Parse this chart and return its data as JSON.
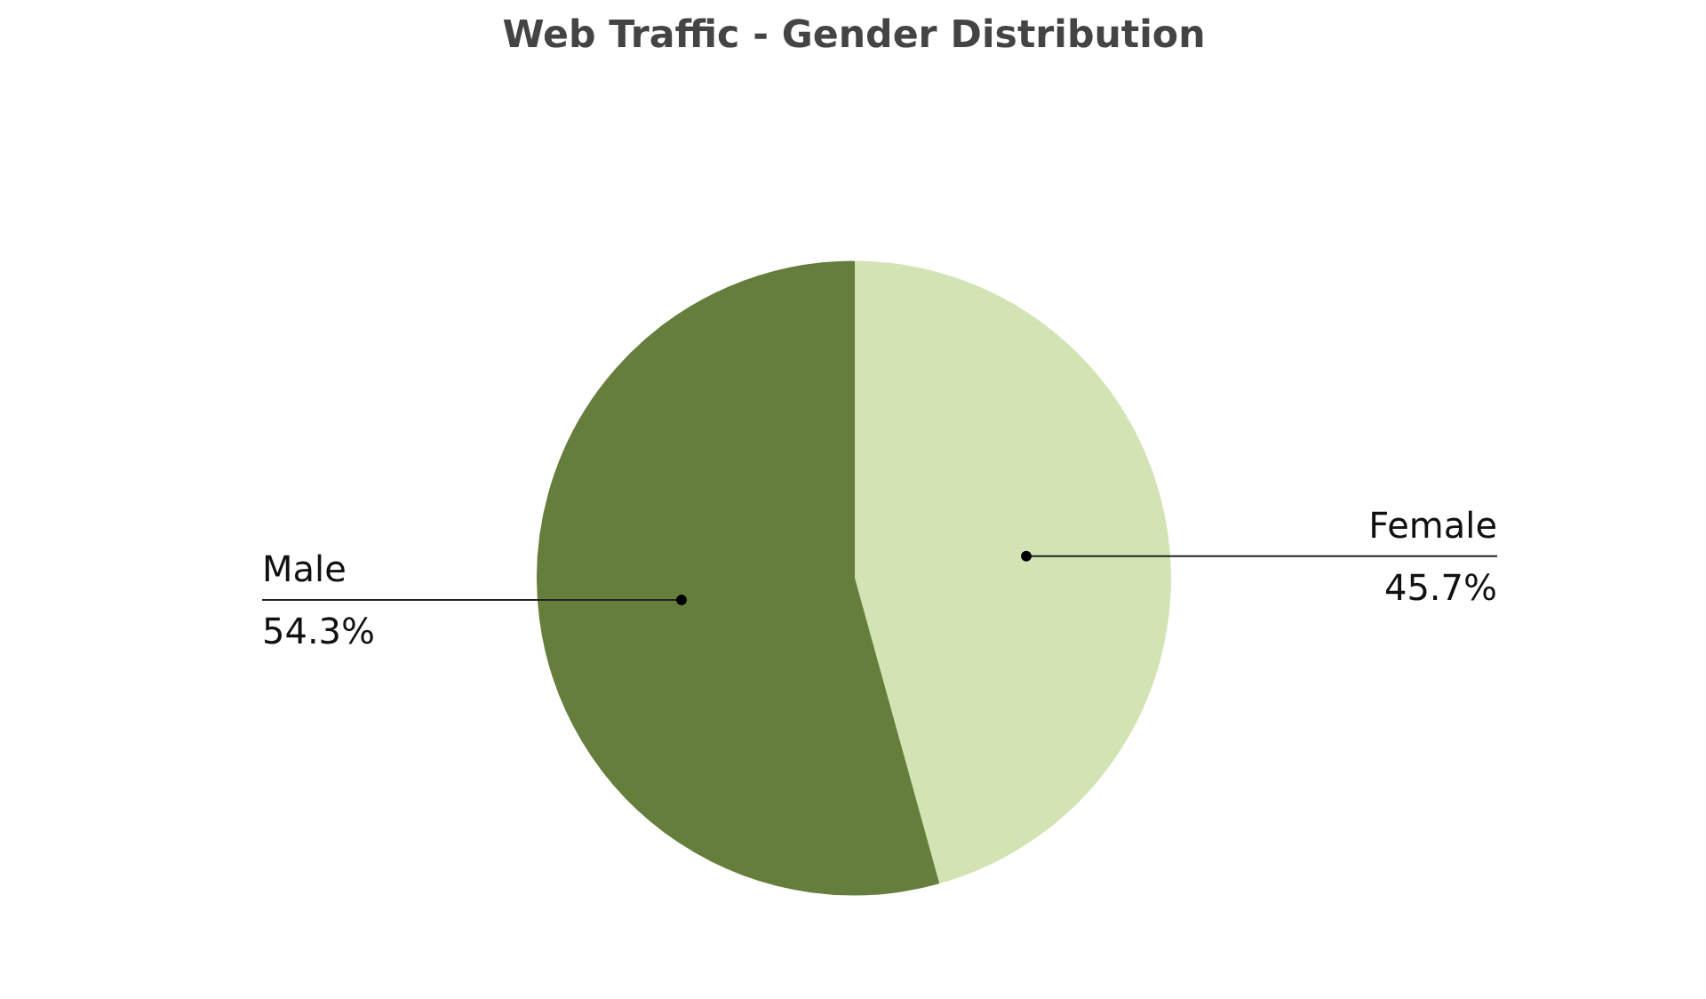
{
  "chart_data": {
    "type": "pie",
    "title": "Web Traffic - Gender Distribution",
    "categories": [
      "Female",
      "Male"
    ],
    "values": [
      45.7,
      54.3
    ],
    "colors": [
      "#d2e4b4",
      "#657e3c"
    ],
    "value_labels": [
      "45.7%",
      "54.3%"
    ],
    "legend": false
  }
}
